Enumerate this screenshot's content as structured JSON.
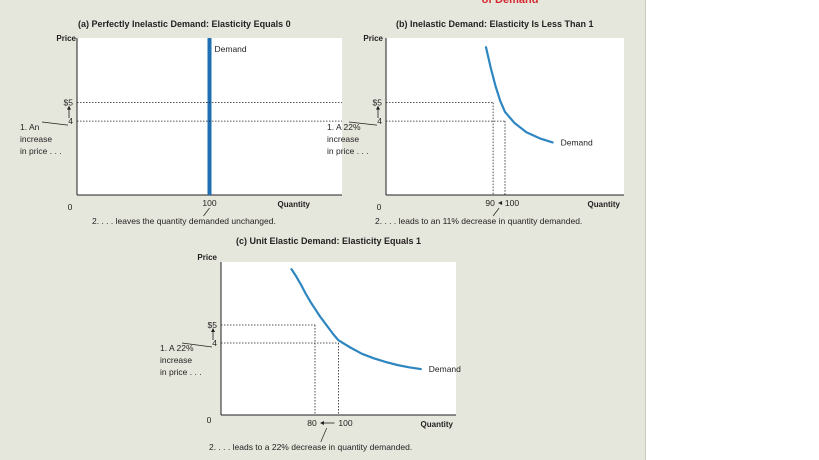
{
  "page": {
    "header_fragment": "of Demand"
  },
  "chart_data": [
    {
      "id": "a",
      "type": "line",
      "title": "(a) Perfectly Inelastic Demand: Elasticity Equals 0",
      "ylabel": "Price",
      "xlabel": "Quantity",
      "origin_label": "0",
      "xlim": [
        0,
        200
      ],
      "ylim": [
        0,
        8.5
      ],
      "series": [
        {
          "name": "Demand",
          "x": [
            100,
            100
          ],
          "y": [
            0,
            8.5
          ]
        }
      ],
      "y_ticks": [
        {
          "value": 5,
          "label": "$5"
        },
        {
          "value": 4,
          "label": "4"
        }
      ],
      "x_ticks": [
        {
          "value": 100,
          "label": "100"
        }
      ],
      "price_note": [
        "1. An",
        "increase",
        "in price . . ."
      ],
      "quantity_note": "2. . . . leaves the quantity demanded unchanged."
    },
    {
      "id": "b",
      "type": "line",
      "title": "(b) Inelastic Demand: Elasticity Is Less Than 1",
      "ylabel": "Price",
      "xlabel": "Quantity",
      "origin_label": "0",
      "xlim": [
        0,
        200
      ],
      "ylim": [
        0,
        8.5
      ],
      "series": [
        {
          "name": "Demand",
          "x": [
            84,
            88,
            92,
            96,
            100,
            108,
            118,
            130,
            140
          ],
          "y": [
            8.0,
            6.9,
            5.9,
            5.1,
            4.5,
            3.9,
            3.4,
            3.05,
            2.85
          ]
        }
      ],
      "y_ticks": [
        {
          "value": 5,
          "label": "$5"
        },
        {
          "value": 4,
          "label": "4"
        }
      ],
      "x_ticks": [
        {
          "value": 90,
          "label": "90"
        },
        {
          "value": 100,
          "label": "100"
        }
      ],
      "drop_x": [
        90,
        100
      ],
      "price_note": [
        "1. A 22%",
        "increase",
        "in price . . ."
      ],
      "quantity_note": "2. . . . leads to an 11% decrease in quantity demanded."
    },
    {
      "id": "c",
      "type": "line",
      "title": "(c) Unit Elastic Demand: Elasticity Equals 1",
      "ylabel": "Price",
      "xlabel": "Quantity",
      "origin_label": "0",
      "xlim": [
        0,
        200
      ],
      "ylim": [
        0,
        8.5
      ],
      "series": [
        {
          "name": "Demand",
          "x": [
            60,
            64,
            68,
            72,
            76,
            80,
            84,
            88,
            92,
            96,
            100,
            110,
            120,
            130,
            140,
            150,
            160,
            170
          ],
          "y": [
            8.1,
            7.7,
            7.25,
            6.75,
            6.3,
            5.9,
            5.5,
            5.15,
            4.8,
            4.45,
            4.15,
            3.75,
            3.4,
            3.15,
            2.95,
            2.78,
            2.65,
            2.55
          ]
        }
      ],
      "y_ticks": [
        {
          "value": 5,
          "label": "$5"
        },
        {
          "value": 4,
          "label": "4"
        }
      ],
      "x_ticks": [
        {
          "value": 80,
          "label": "80"
        },
        {
          "value": 100,
          "label": "100"
        }
      ],
      "drop_x": [
        80,
        100
      ],
      "price_note": [
        "1. A 22%",
        "increase",
        "in price . . ."
      ],
      "quantity_note": "2. . . . leads to a 22% decrease in quantity demanded."
    }
  ],
  "colors": {
    "panel_bg": "#e5e6dc",
    "plot_bg": "#ffffff",
    "curve": "#2e86c1",
    "vertical_demand": "#1f6fb2",
    "heading_red": "#d7282f",
    "text": "#231f20"
  }
}
